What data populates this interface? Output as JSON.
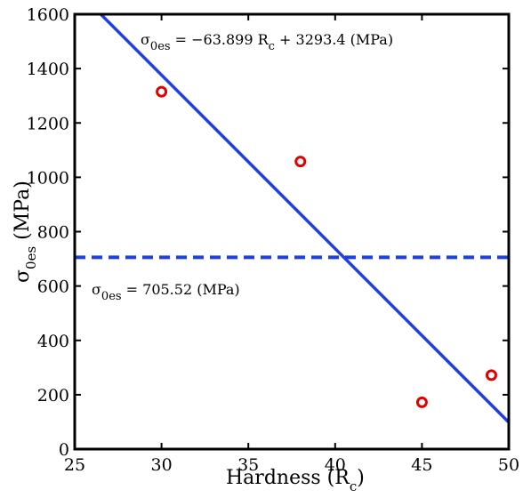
{
  "chart_data": {
    "type": "scatter",
    "xlabel": {
      "main": "Hardness (R",
      "sub": "c",
      "tail": ")"
    },
    "ylabel": {
      "sym": "σ",
      "sub": "0es",
      "tail": " (MPa)"
    },
    "xlim": [
      25,
      50
    ],
    "ylim": [
      0,
      1600
    ],
    "x_ticks": [
      "25",
      "30",
      "35",
      "40",
      "45",
      "50"
    ],
    "y_ticks": [
      "0",
      "200",
      "400",
      "600",
      "800",
      "1000",
      "1200",
      "1400",
      "1600"
    ],
    "grid": false,
    "series": [
      {
        "kind": "markers",
        "marker": "circle-open",
        "color": "#e00000",
        "points": [
          {
            "x": 30,
            "y": 1315
          },
          {
            "x": 38,
            "y": 1058
          },
          {
            "x": 45,
            "y": 172
          },
          {
            "x": 49,
            "y": 272
          }
        ]
      },
      {
        "kind": "line",
        "style": "solid",
        "color": "#1f3fe6",
        "slope": -63.899,
        "intercept": 3293.4
      },
      {
        "kind": "hline",
        "style": "dashed",
        "color": "#1f3fe6",
        "y": 705.52
      }
    ],
    "annotations": {
      "fit": {
        "sym": "σ",
        "sub": "0es",
        "text": " = −63.899 R",
        "sub2": "c",
        "text2": " + 3293.4 (MPa)"
      },
      "mean": {
        "sym": "σ",
        "sub": "0es",
        "text": " = 705.52 (MPa)"
      }
    }
  }
}
